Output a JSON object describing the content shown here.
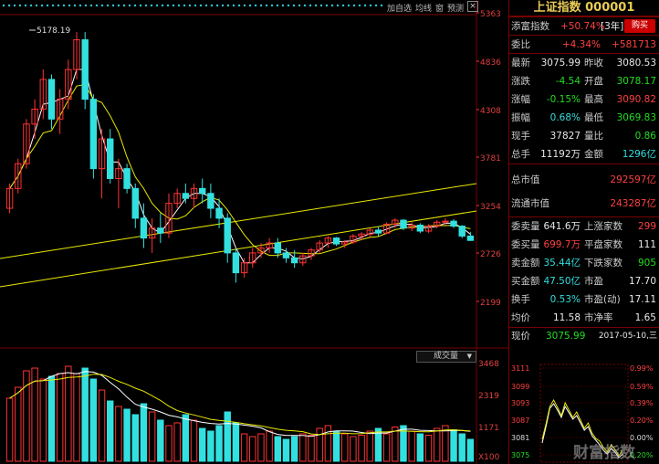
{
  "toolbar": {
    "items": [
      "加自选",
      "均线",
      "窗",
      "预测"
    ],
    "close": "×"
  },
  "price_axis": [
    "5363",
    "4836",
    "4308",
    "3781",
    "3254",
    "2726",
    "2199"
  ],
  "volume_axis": [
    "3468",
    "2319",
    "1171",
    "X100"
  ],
  "peak_label": "5178.19",
  "volume_selector": "成交量",
  "colors": {
    "up": "#ff3333",
    "down": "#33e0e0",
    "ma_short": "#ffffff",
    "ma_long": "#e9e900",
    "border": "#770000",
    "title": "#e9cc55"
  },
  "panel": {
    "title": "上证指数 000001",
    "fortune": {
      "label": "添富指数",
      "change": "+50.74%",
      "period": "[3年]",
      "buy": "购买"
    },
    "weibi": {
      "label": "委比",
      "value": "+4.34%",
      "diff": "+581713"
    },
    "quote": [
      {
        "l1": "最新",
        "v1": "3075.99",
        "c1": "white",
        "l2": "昨收",
        "v2": "3080.53",
        "c2": "white"
      },
      {
        "l1": "涨跌",
        "v1": "-4.54",
        "c1": "green",
        "l2": "开盘",
        "v2": "3078.17",
        "c2": "green"
      },
      {
        "l1": "涨幅",
        "v1": "-0.15%",
        "c1": "green",
        "l2": "最高",
        "v2": "3090.82",
        "c2": "red"
      },
      {
        "l1": "振幅",
        "v1": "0.68%",
        "c1": "cyan",
        "l2": "最低",
        "v2": "3069.83",
        "c2": "green"
      },
      {
        "l1": "现手",
        "v1": "37827",
        "c1": "white",
        "l2": "量比",
        "v2": "0.86",
        "c2": "green"
      },
      {
        "l1": "总手",
        "v1": "11192万",
        "c1": "white",
        "l2": "金额",
        "v2": "1296亿",
        "c2": "cyan"
      }
    ],
    "cap": [
      {
        "label": "总市值",
        "value": "292597亿"
      },
      {
        "label": "流通市值",
        "value": "243287亿"
      }
    ],
    "stats": [
      {
        "l1": "委卖量",
        "v1": "641.6万",
        "c1": "white",
        "l2": "上涨家数",
        "v2": "299",
        "c2": "red"
      },
      {
        "l1": "委买量",
        "v1": "699.7万",
        "c1": "red",
        "l2": "平盘家数",
        "v2": "111",
        "c2": "white"
      },
      {
        "l1": "卖金额",
        "v1": "35.44亿",
        "c1": "cyan",
        "l2": "下跌家数",
        "v2": "905",
        "c2": "green"
      },
      {
        "l1": "买金额",
        "v1": "47.50亿",
        "c1": "cyan",
        "l2": "市盈",
        "v2": "17.70",
        "c2": "white"
      },
      {
        "l1": "换手",
        "v1": "0.53%",
        "c1": "cyan",
        "l2": "市盈(动)",
        "v2": "17.11",
        "c2": "white"
      },
      {
        "l1": "均价",
        "v1": "11.58",
        "c1": "white",
        "l2": "市净率",
        "v2": "1.65",
        "c2": "white"
      }
    ],
    "current": {
      "label": "现价",
      "value": "3075.99",
      "date": "2017-05-10,三"
    },
    "mini_axis_left": [
      "3111",
      "3099",
      "3093",
      "3087",
      "3081",
      "3075"
    ],
    "mini_axis_right": [
      "0.99%",
      "0.59%",
      "0.39%",
      "0.20%",
      "0.00%",
      "0.20%"
    ],
    "watermark": "财富指数"
  },
  "chart_data": {
    "type": "candlestick",
    "title": "",
    "ylim": [
      2000,
      5400
    ],
    "peak": 5178.19,
    "candles": [
      [
        3400,
        3650,
        3350,
        3600
      ],
      [
        3600,
        3900,
        3550,
        3850
      ],
      [
        3850,
        4300,
        3800,
        4250
      ],
      [
        4250,
        4500,
        4100,
        4400
      ],
      [
        4400,
        4800,
        4300,
        4700
      ],
      [
        4700,
        4750,
        4200,
        4300
      ],
      [
        4300,
        4600,
        4150,
        4500
      ],
      [
        4500,
        4900,
        4400,
        4800
      ],
      [
        4800,
        5178,
        4700,
        5100
      ],
      [
        5100,
        5178,
        4400,
        4500
      ],
      [
        4500,
        4550,
        3700,
        3800
      ],
      [
        3800,
        4200,
        3500,
        4100
      ],
      [
        4100,
        4200,
        3650,
        3700
      ],
      [
        3700,
        3900,
        3400,
        3800
      ],
      [
        3800,
        3850,
        3550,
        3600
      ],
      [
        3600,
        3650,
        3200,
        3300
      ],
      [
        3300,
        3450,
        3000,
        3100
      ],
      [
        3100,
        3300,
        2950,
        3200
      ],
      [
        3200,
        3350,
        3050,
        3150
      ],
      [
        3150,
        3550,
        3100,
        3450
      ],
      [
        3450,
        3600,
        3400,
        3550
      ],
      [
        3550,
        3650,
        3450,
        3500
      ],
      [
        3500,
        3650,
        3400,
        3600
      ],
      [
        3600,
        3700,
        3450,
        3550
      ],
      [
        3550,
        3650,
        3300,
        3400
      ],
      [
        3400,
        3500,
        3200,
        3300
      ],
      [
        3300,
        3350,
        2850,
        2950
      ],
      [
        2950,
        3000,
        2650,
        2750
      ],
      [
        2750,
        2900,
        2700,
        2850
      ],
      [
        2850,
        3000,
        2800,
        2950
      ],
      [
        2950,
        3050,
        2900,
        3000
      ],
      [
        3000,
        3100,
        2950,
        3050
      ],
      [
        3050,
        3100,
        2900,
        2950
      ],
      [
        2950,
        3000,
        2850,
        2900
      ],
      [
        2900,
        2980,
        2800,
        2850
      ],
      [
        2850,
        2950,
        2820,
        2920
      ],
      [
        2920,
        3000,
        2880,
        2980
      ],
      [
        2980,
        3080,
        2950,
        3050
      ],
      [
        3050,
        3120,
        3000,
        3100
      ],
      [
        3100,
        3110,
        3020,
        3040
      ],
      [
        3040,
        3080,
        3000,
        3060
      ],
      [
        3060,
        3140,
        3040,
        3120
      ],
      [
        3120,
        3160,
        3080,
        3140
      ],
      [
        3140,
        3200,
        3110,
        3180
      ],
      [
        3180,
        3220,
        3120,
        3150
      ],
      [
        3150,
        3260,
        3140,
        3240
      ],
      [
        3240,
        3300,
        3200,
        3280
      ],
      [
        3280,
        3290,
        3180,
        3200
      ],
      [
        3200,
        3260,
        3170,
        3230
      ],
      [
        3230,
        3250,
        3150,
        3170
      ],
      [
        3170,
        3240,
        3150,
        3220
      ],
      [
        3220,
        3280,
        3200,
        3260
      ],
      [
        3260,
        3300,
        3230,
        3270
      ],
      [
        3270,
        3290,
        3200,
        3220
      ],
      [
        3220,
        3230,
        3100,
        3120
      ],
      [
        3120,
        3160,
        3070,
        3076
      ]
    ],
    "volume": [
      2300,
      2700,
      3300,
      3400,
      3000,
      3100,
      3200,
      3468,
      3200,
      3400,
      3000,
      2600,
      2200,
      2000,
      1900,
      1700,
      2100,
      1800,
      1500,
      1300,
      1400,
      1700,
      1500,
      1200,
      1100,
      1300,
      1800,
      1400,
      1000,
      900,
      1000,
      1100,
      900,
      800,
      900,
      1000,
      950,
      1200,
      1300,
      1100,
      1000,
      900,
      950,
      1100,
      1200,
      1000,
      1250,
      1300,
      1100,
      1000,
      950,
      1200,
      1300,
      1150,
      1000,
      800
    ]
  }
}
